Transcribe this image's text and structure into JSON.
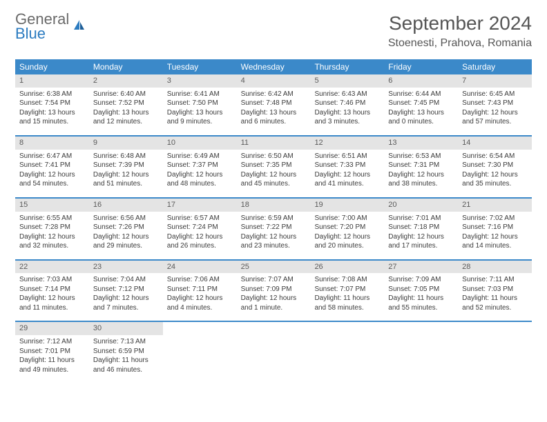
{
  "logo": {
    "line1": "General",
    "line2": "Blue"
  },
  "title": "September 2024",
  "location": "Stoenesti, Prahova, Romania",
  "colors": {
    "header_bg": "#3b89c9",
    "header_text": "#ffffff",
    "daynum_bg": "#e4e4e4",
    "rule": "#3b89c9",
    "text": "#3a3a3a",
    "logo_gray": "#6a6a6a",
    "logo_blue": "#2b7bc0"
  },
  "typography": {
    "title_fontsize": 28,
    "location_fontsize": 16,
    "weekday_fontsize": 12,
    "daynum_fontsize": 11,
    "cell_fontsize": 10
  },
  "weekdays": [
    "Sunday",
    "Monday",
    "Tuesday",
    "Wednesday",
    "Thursday",
    "Friday",
    "Saturday"
  ],
  "weeks": [
    [
      {
        "n": "1",
        "sr": "Sunrise: 6:38 AM",
        "ss": "Sunset: 7:54 PM",
        "d1": "Daylight: 13 hours",
        "d2": "and 15 minutes."
      },
      {
        "n": "2",
        "sr": "Sunrise: 6:40 AM",
        "ss": "Sunset: 7:52 PM",
        "d1": "Daylight: 13 hours",
        "d2": "and 12 minutes."
      },
      {
        "n": "3",
        "sr": "Sunrise: 6:41 AM",
        "ss": "Sunset: 7:50 PM",
        "d1": "Daylight: 13 hours",
        "d2": "and 9 minutes."
      },
      {
        "n": "4",
        "sr": "Sunrise: 6:42 AM",
        "ss": "Sunset: 7:48 PM",
        "d1": "Daylight: 13 hours",
        "d2": "and 6 minutes."
      },
      {
        "n": "5",
        "sr": "Sunrise: 6:43 AM",
        "ss": "Sunset: 7:46 PM",
        "d1": "Daylight: 13 hours",
        "d2": "and 3 minutes."
      },
      {
        "n": "6",
        "sr": "Sunrise: 6:44 AM",
        "ss": "Sunset: 7:45 PM",
        "d1": "Daylight: 13 hours",
        "d2": "and 0 minutes."
      },
      {
        "n": "7",
        "sr": "Sunrise: 6:45 AM",
        "ss": "Sunset: 7:43 PM",
        "d1": "Daylight: 12 hours",
        "d2": "and 57 minutes."
      }
    ],
    [
      {
        "n": "8",
        "sr": "Sunrise: 6:47 AM",
        "ss": "Sunset: 7:41 PM",
        "d1": "Daylight: 12 hours",
        "d2": "and 54 minutes."
      },
      {
        "n": "9",
        "sr": "Sunrise: 6:48 AM",
        "ss": "Sunset: 7:39 PM",
        "d1": "Daylight: 12 hours",
        "d2": "and 51 minutes."
      },
      {
        "n": "10",
        "sr": "Sunrise: 6:49 AM",
        "ss": "Sunset: 7:37 PM",
        "d1": "Daylight: 12 hours",
        "d2": "and 48 minutes."
      },
      {
        "n": "11",
        "sr": "Sunrise: 6:50 AM",
        "ss": "Sunset: 7:35 PM",
        "d1": "Daylight: 12 hours",
        "d2": "and 45 minutes."
      },
      {
        "n": "12",
        "sr": "Sunrise: 6:51 AM",
        "ss": "Sunset: 7:33 PM",
        "d1": "Daylight: 12 hours",
        "d2": "and 41 minutes."
      },
      {
        "n": "13",
        "sr": "Sunrise: 6:53 AM",
        "ss": "Sunset: 7:31 PM",
        "d1": "Daylight: 12 hours",
        "d2": "and 38 minutes."
      },
      {
        "n": "14",
        "sr": "Sunrise: 6:54 AM",
        "ss": "Sunset: 7:30 PM",
        "d1": "Daylight: 12 hours",
        "d2": "and 35 minutes."
      }
    ],
    [
      {
        "n": "15",
        "sr": "Sunrise: 6:55 AM",
        "ss": "Sunset: 7:28 PM",
        "d1": "Daylight: 12 hours",
        "d2": "and 32 minutes."
      },
      {
        "n": "16",
        "sr": "Sunrise: 6:56 AM",
        "ss": "Sunset: 7:26 PM",
        "d1": "Daylight: 12 hours",
        "d2": "and 29 minutes."
      },
      {
        "n": "17",
        "sr": "Sunrise: 6:57 AM",
        "ss": "Sunset: 7:24 PM",
        "d1": "Daylight: 12 hours",
        "d2": "and 26 minutes."
      },
      {
        "n": "18",
        "sr": "Sunrise: 6:59 AM",
        "ss": "Sunset: 7:22 PM",
        "d1": "Daylight: 12 hours",
        "d2": "and 23 minutes."
      },
      {
        "n": "19",
        "sr": "Sunrise: 7:00 AM",
        "ss": "Sunset: 7:20 PM",
        "d1": "Daylight: 12 hours",
        "d2": "and 20 minutes."
      },
      {
        "n": "20",
        "sr": "Sunrise: 7:01 AM",
        "ss": "Sunset: 7:18 PM",
        "d1": "Daylight: 12 hours",
        "d2": "and 17 minutes."
      },
      {
        "n": "21",
        "sr": "Sunrise: 7:02 AM",
        "ss": "Sunset: 7:16 PM",
        "d1": "Daylight: 12 hours",
        "d2": "and 14 minutes."
      }
    ],
    [
      {
        "n": "22",
        "sr": "Sunrise: 7:03 AM",
        "ss": "Sunset: 7:14 PM",
        "d1": "Daylight: 12 hours",
        "d2": "and 11 minutes."
      },
      {
        "n": "23",
        "sr": "Sunrise: 7:04 AM",
        "ss": "Sunset: 7:12 PM",
        "d1": "Daylight: 12 hours",
        "d2": "and 7 minutes."
      },
      {
        "n": "24",
        "sr": "Sunrise: 7:06 AM",
        "ss": "Sunset: 7:11 PM",
        "d1": "Daylight: 12 hours",
        "d2": "and 4 minutes."
      },
      {
        "n": "25",
        "sr": "Sunrise: 7:07 AM",
        "ss": "Sunset: 7:09 PM",
        "d1": "Daylight: 12 hours",
        "d2": "and 1 minute."
      },
      {
        "n": "26",
        "sr": "Sunrise: 7:08 AM",
        "ss": "Sunset: 7:07 PM",
        "d1": "Daylight: 11 hours",
        "d2": "and 58 minutes."
      },
      {
        "n": "27",
        "sr": "Sunrise: 7:09 AM",
        "ss": "Sunset: 7:05 PM",
        "d1": "Daylight: 11 hours",
        "d2": "and 55 minutes."
      },
      {
        "n": "28",
        "sr": "Sunrise: 7:11 AM",
        "ss": "Sunset: 7:03 PM",
        "d1": "Daylight: 11 hours",
        "d2": "and 52 minutes."
      }
    ],
    [
      {
        "n": "29",
        "sr": "Sunrise: 7:12 AM",
        "ss": "Sunset: 7:01 PM",
        "d1": "Daylight: 11 hours",
        "d2": "and 49 minutes."
      },
      {
        "n": "30",
        "sr": "Sunrise: 7:13 AM",
        "ss": "Sunset: 6:59 PM",
        "d1": "Daylight: 11 hours",
        "d2": "and 46 minutes."
      },
      null,
      null,
      null,
      null,
      null
    ]
  ]
}
